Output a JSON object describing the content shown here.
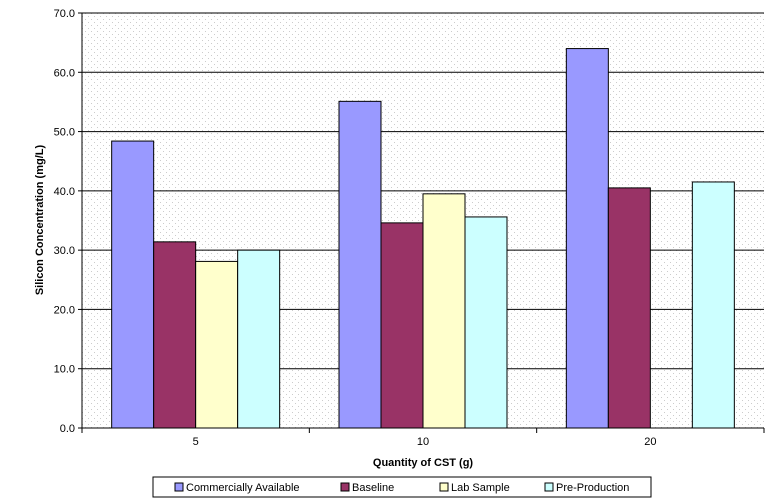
{
  "chart_data": {
    "type": "bar",
    "xlabel": "Quantity of CST (g)",
    "ylabel": "Silicon Concentration (mg/L)",
    "ylim": [
      0,
      70
    ],
    "ytick_step": 10,
    "ytick_labels": [
      "0.0",
      "10.0",
      "20.0",
      "30.0",
      "40.0",
      "50.0",
      "60.0",
      "70.0"
    ],
    "categories": [
      "5",
      "10",
      "20"
    ],
    "grid": true,
    "legend_position": "bottom",
    "series": [
      {
        "name": "Commercially Available",
        "color": "#9999ff",
        "values": [
          48.4,
          55.1,
          64.0
        ]
      },
      {
        "name": "Baseline",
        "color": "#993366",
        "values": [
          31.4,
          34.6,
          40.5
        ]
      },
      {
        "name": "Lab Sample",
        "color": "#ffffcc",
        "values": [
          28.1,
          39.5,
          null
        ]
      },
      {
        "name": "Pre-Production",
        "color": "#ccffff",
        "values": [
          30.0,
          35.6,
          41.5
        ]
      }
    ]
  }
}
